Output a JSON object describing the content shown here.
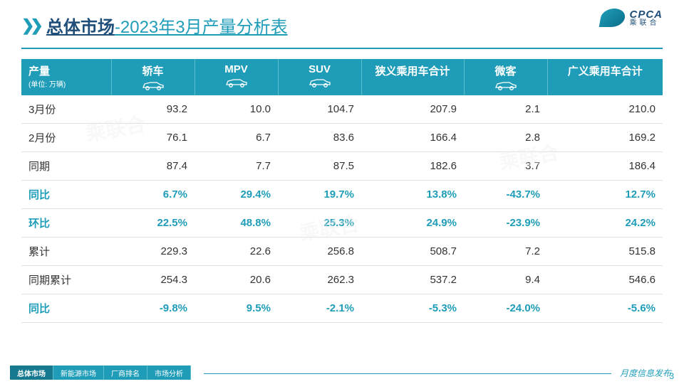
{
  "title": {
    "main": "总体市场",
    "sub": "-2023年3月产量分析表"
  },
  "logo": {
    "brand": "CPCA",
    "cn": "乘联合"
  },
  "table": {
    "header": {
      "label": "产量",
      "unit": "(单位: 万辆)",
      "cols": [
        "轿车",
        "MPV",
        "SUV",
        "狭义乘用车\n合计",
        "微客",
        "广义乘用车\n合计"
      ]
    },
    "rows": [
      {
        "label": "3月份",
        "vals": [
          "93.2",
          "10.0",
          "104.7",
          "207.9",
          "2.1",
          "210.0"
        ],
        "hl": false
      },
      {
        "label": "2月份",
        "vals": [
          "76.1",
          "6.7",
          "83.6",
          "166.4",
          "2.8",
          "169.2"
        ],
        "hl": false
      },
      {
        "label": "同期",
        "vals": [
          "87.4",
          "7.7",
          "87.5",
          "182.6",
          "3.7",
          "186.4"
        ],
        "hl": false
      },
      {
        "label": "同比",
        "vals": [
          "6.7%",
          "29.4%",
          "19.7%",
          "13.8%",
          "-43.7%",
          "12.7%"
        ],
        "hl": true
      },
      {
        "label": "环比",
        "vals": [
          "22.5%",
          "48.8%",
          "25.3%",
          "24.9%",
          "-23.9%",
          "24.2%"
        ],
        "hl": true
      },
      {
        "label": "累计",
        "vals": [
          "229.3",
          "22.6",
          "256.8",
          "508.7",
          "7.2",
          "515.8"
        ],
        "hl": false
      },
      {
        "label": "同期累计",
        "vals": [
          "254.3",
          "20.6",
          "262.3",
          "537.2",
          "9.4",
          "546.6"
        ],
        "hl": false
      },
      {
        "label": "同比",
        "vals": [
          "-9.8%",
          "9.5%",
          "-2.1%",
          "-5.3%",
          "-24.0%",
          "-5.6%"
        ],
        "hl": true
      }
    ]
  },
  "footer": {
    "tabs": [
      "总体市场",
      "新能源市场",
      "厂商排名",
      "市场分析"
    ],
    "active_tab": 0,
    "label": "月度信息发布",
    "page": "3"
  },
  "style": {
    "accent": "#1f9db8",
    "title_color": "#1f4e79",
    "header_bg": "#1f9db8",
    "row_border": "#e0e0e0",
    "highlight_text": "#1f9db8",
    "col_widths_pct": [
      14,
      13,
      13,
      13,
      16,
      13,
      18
    ]
  }
}
